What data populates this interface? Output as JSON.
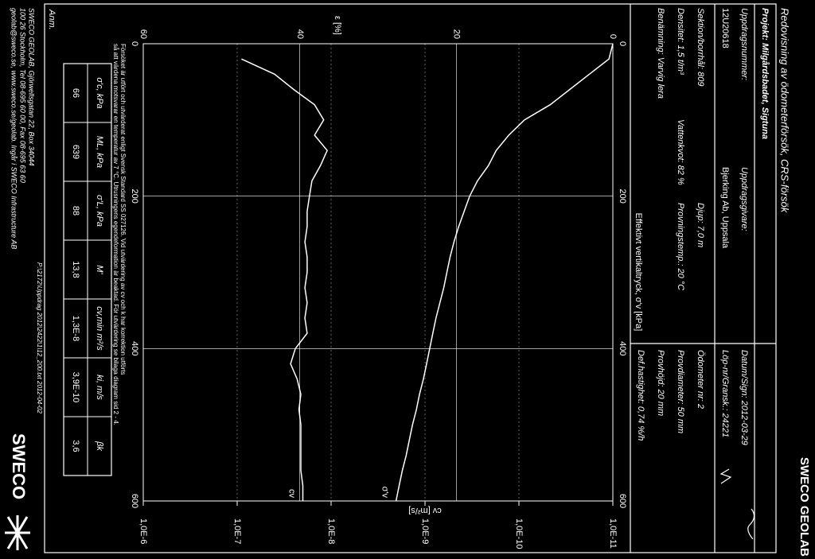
{
  "header": {
    "brand": "SWECO GEOLAB",
    "title": "Redovisning av ödometerförsök, CRS-försök"
  },
  "info": {
    "project": "Projekt: Milgårdsbadet, Sigtuna",
    "assignment_label": "Uppdragsnummer:",
    "assignment": "12U20618",
    "client_label": "Uppdragsgivare:",
    "client": "Bjerking Ab, Uppsala",
    "date": "Datum/Sign: 2012-03-29",
    "run": "Löp-nr/Gransk.: 24221",
    "section": "Sektion/borrhål: 809",
    "depth": "Djup: 7,0 m",
    "density": "Densitet: 1,5 t/m³",
    "water": "Vattenkvot: 82 %",
    "temp": "Provningstemp.: 20 °C",
    "soil": "Benämning: Varvig lera",
    "oedometer": "Ödometer nr: 2",
    "diameter": "Provdiameter: 50 mm",
    "height": "Provhöjd: 20 mm",
    "rate": "Def.hastighet: 0,74 %/h"
  },
  "chart_data": {
    "type": "line",
    "x_label": "Effektivt vertikaltryck, σ'v [kPa]",
    "y_label": "ε [%]",
    "y2_label": "cv [m²/s]",
    "xlim": [
      0,
      600
    ],
    "xticks": [
      0,
      200,
      400,
      600
    ],
    "ylim": [
      0,
      60
    ],
    "yticks": [
      0,
      20,
      40,
      60
    ],
    "y2lim": [
      1e-11,
      1e-06
    ],
    "y2scale": "log",
    "y2ticks": [
      {
        "value": 1e-11,
        "label": "1,0E-11"
      },
      {
        "value": 1e-10,
        "label": "1,0E-10"
      },
      {
        "value": 1e-09,
        "label": "1,0E-9"
      },
      {
        "value": 1e-08,
        "label": "1,0E-8"
      },
      {
        "value": 1e-07,
        "label": "1,0E-7"
      },
      {
        "value": 1e-06,
        "label": "1,0E-6"
      }
    ],
    "grid": true,
    "x": [
      0,
      20,
      40,
      60,
      80,
      100,
      120,
      140,
      160,
      180,
      200,
      220,
      240,
      260,
      280,
      300,
      320,
      340,
      360,
      380,
      400,
      420,
      440,
      460,
      480,
      500,
      520,
      540,
      560,
      580,
      600
    ],
    "series": [
      {
        "name": "σ'v",
        "color": "#ffffff",
        "values": [
          0,
          0.5,
          3,
          5.5,
          8,
          11.3,
          13.3,
          14.9,
          15.9,
          17.3,
          18.3,
          19,
          19.7,
          20.3,
          20.8,
          21.2,
          21.6,
          22.1,
          22.6,
          23,
          23.4,
          23.8,
          24.2,
          24.7,
          25.1,
          25.6,
          26,
          26.4,
          26.9,
          27.3,
          27.7
        ]
      },
      {
        "name": "cv",
        "color": "#ffffff",
        "axis": "y2",
        "values": [
          null,
          9e-08,
          4e-08,
          2.5e-08,
          1.5e-08,
          1.2e-08,
          1.5e-08,
          1.1e-08,
          1.3e-08,
          1.6e-08,
          1.7e-08,
          1.8e-08,
          1.8e-08,
          1.9e-08,
          1.8e-08,
          1.8e-08,
          1.9e-08,
          1.8e-08,
          1.9e-08,
          1.8e-08,
          2.4e-08,
          2.7e-08,
          2.3e-08,
          2.1e-08,
          2.2e-08,
          2.1e-08,
          2.1e-08,
          2.1e-08,
          2.1e-08,
          2e-08,
          2e-08
        ]
      }
    ]
  },
  "note": [
    "Försöket är utfört och utvärderat enligt Svensk Standard SS 027126. Vid utvärdering av cv och k har korrektion utförts",
    "så att värdena motsvarar en temperatur av 7 °C. Utrusningens egendeformation är beaktad. För utvärdering se bilaga diagram sid 2 - 4."
  ],
  "table": {
    "headers": [
      "σ'c, kPa",
      "ML, kPa",
      "σ'L, kPa",
      "M'",
      "cv,min m²/s",
      "ki, m/s",
      "βk"
    ],
    "rows": [
      [
        "66",
        "639",
        "88",
        "13,8",
        "1,3E-8",
        "3,9E-10",
        "3,6"
      ]
    ]
  },
  "remark": "Anm.",
  "footer": {
    "address": [
      "SWECO GEOLAB, Gjörwellsgatan 22, Box 34044",
      "100 26 Stockholm, Tel 08-695 60 00, Fax 08-695 63 60",
      "geolab@sweco.se, www.sweco.se/geolab. Ingår i SWECO Infrastructure AB"
    ],
    "path": "P:\\2172\\Uppdrag 2012\\2422\\1\\12_200.txt 2012-04-02",
    "logo": "SWECO"
  }
}
